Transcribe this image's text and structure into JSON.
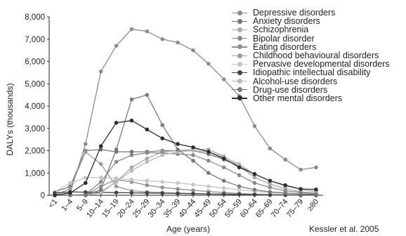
{
  "chart_data": {
    "type": "line",
    "title": "",
    "xlabel": "Age (years)",
    "ylabel": "DALYs (thousands)",
    "ylim": [
      0,
      8000
    ],
    "yticks": [
      "0",
      "1,000",
      "2,000",
      "3,000",
      "4,000",
      "5,000",
      "6,000",
      "7,000",
      "8,000"
    ],
    "categories": [
      "<1",
      "1–4",
      "5–9",
      "10–14",
      "15–19",
      "20–24",
      "25–29",
      "30–34",
      "35–39",
      "40–44",
      "45–49",
      "50–54",
      "55–59",
      "60–64",
      "65–69",
      "70–74",
      "75–79",
      "≥80"
    ],
    "legend_position": "top-right",
    "grid": false,
    "series": [
      {
        "name": "Depressive disorders",
        "color": "#8c8c8c",
        "values": [
          0,
          100,
          2300,
          5550,
          6700,
          7450,
          7350,
          7000,
          6850,
          6500,
          5900,
          5200,
          4450,
          3100,
          2100,
          1600,
          1150,
          1250
        ]
      },
      {
        "name": "Anxiety disorders",
        "color": "#777777",
        "values": [
          150,
          400,
          2000,
          2050,
          1950,
          1950,
          1950,
          2000,
          2000,
          2000,
          1850,
          1600,
          1300,
          950,
          650,
          420,
          260,
          160
        ]
      },
      {
        "name": "Schizophrenia",
        "color": "#a8a8a8",
        "values": [
          0,
          0,
          0,
          150,
          600,
          1250,
          1650,
          1950,
          2000,
          2050,
          2050,
          1750,
          1300,
          800,
          500,
          300,
          150,
          100
        ]
      },
      {
        "name": "Bipolar disorder",
        "color": "#8a8a8a",
        "values": [
          0,
          0,
          40,
          600,
          1500,
          1800,
          1900,
          1900,
          1850,
          1800,
          1550,
          1250,
          900,
          550,
          350,
          200,
          120,
          80
        ]
      },
      {
        "name": "Eating disorders",
        "color": "#909090",
        "values": [
          0,
          0,
          20,
          400,
          700,
          600,
          450,
          350,
          280,
          220,
          170,
          120,
          80,
          50,
          30,
          20,
          10,
          5
        ]
      },
      {
        "name": "Childhood behavioural disorders",
        "color": "#9a9a9a",
        "values": [
          0,
          300,
          1950,
          1400,
          400,
          200,
          150,
          120,
          100,
          80,
          60,
          40,
          30,
          20,
          10,
          5,
          5,
          5
        ]
      },
      {
        "name": "Pervasive developmental disorders",
        "color": "#c5c5c5",
        "values": [
          150,
          550,
          780,
          800,
          760,
          700,
          650,
          600,
          550,
          480,
          400,
          320,
          250,
          180,
          120,
          80,
          50,
          30
        ]
      },
      {
        "name": "Idiopathic intellectual disability",
        "color": "#444444",
        "values": [
          100,
          150,
          140,
          130,
          120,
          110,
          100,
          90,
          80,
          70,
          60,
          50,
          40,
          30,
          20,
          15,
          10,
          5
        ]
      },
      {
        "name": "Alcohol-use disorders",
        "color": "#b8b8b8",
        "values": [
          0,
          0,
          0,
          100,
          600,
          1100,
          1500,
          1800,
          1950,
          2000,
          1950,
          1700,
          1400,
          950,
          650,
          420,
          260,
          160
        ]
      },
      {
        "name": "Drug-use disorders",
        "color": "#7a7a7a",
        "values": [
          0,
          0,
          0,
          250,
          2050,
          4300,
          4500,
          3150,
          2050,
          1550,
          1000,
          650,
          400,
          250,
          150,
          100,
          60,
          40
        ]
      },
      {
        "name": "Other mental disorders",
        "color": "#2e2e2e",
        "values": [
          0,
          100,
          550,
          2200,
          3250,
          3350,
          2950,
          2550,
          2300,
          2150,
          1950,
          1650,
          1250,
          950,
          650,
          450,
          280,
          260
        ]
      }
    ]
  },
  "source_note": "Kessler et al. 2005"
}
